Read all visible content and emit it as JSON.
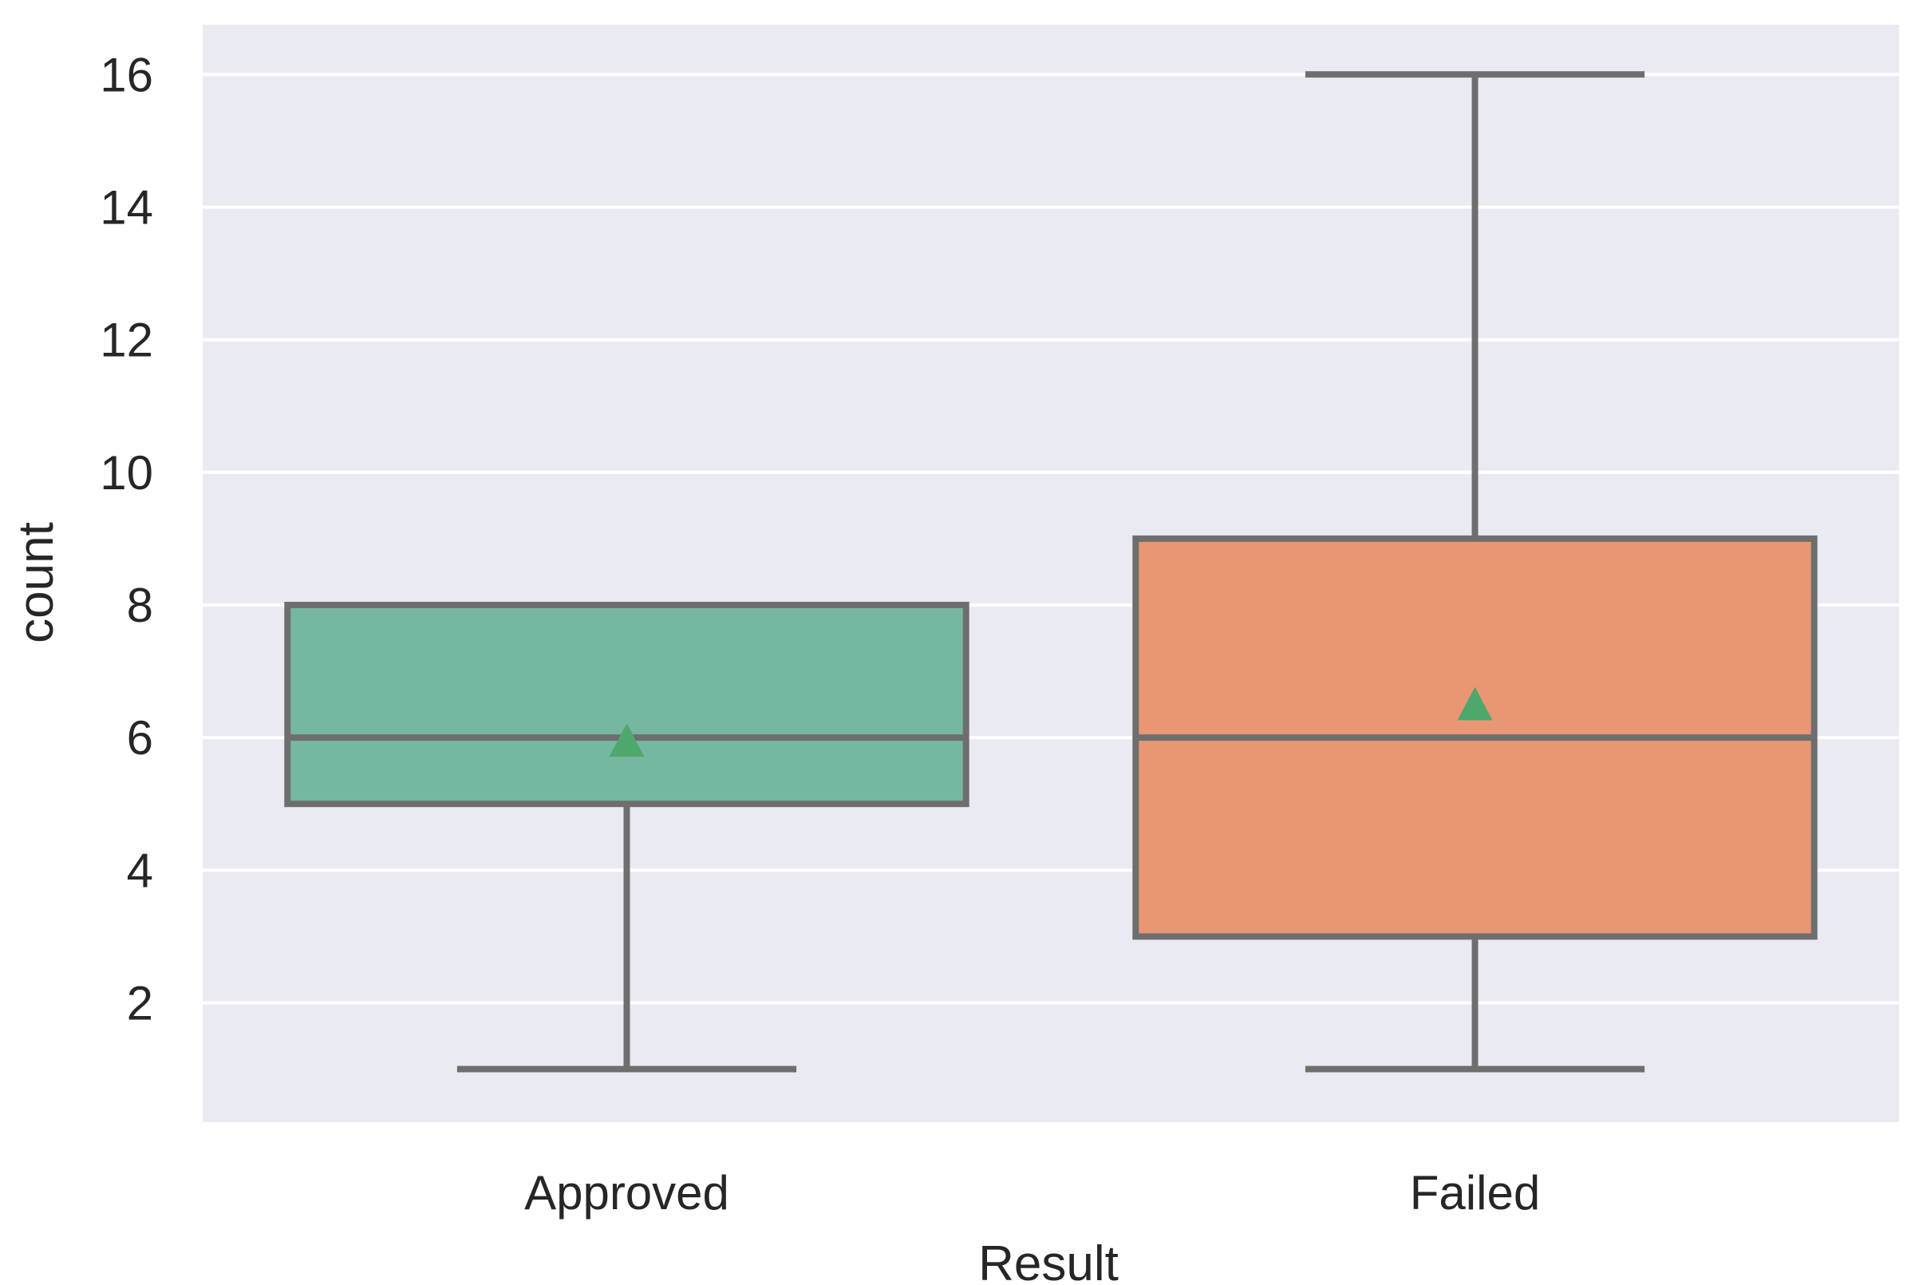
{
  "chart_data": {
    "type": "box",
    "xlabel": "Result",
    "ylabel": "count",
    "categories": [
      "Approved",
      "Failed"
    ],
    "ylim": [
      0.2,
      16.75
    ],
    "yticks": [
      2,
      4,
      6,
      8,
      10,
      12,
      14,
      16
    ],
    "grid": true,
    "boxes": [
      {
        "category": "Approved",
        "whisker_low": 1,
        "q1": 5,
        "median": 6,
        "q3": 8,
        "whisker_high": 8,
        "mean": 5.95,
        "color": "#76b7a1"
      },
      {
        "category": "Failed",
        "whisker_low": 1,
        "q1": 3,
        "median": 6,
        "q3": 9,
        "whisker_high": 16,
        "mean": 6.5,
        "color": "#e99675"
      }
    ],
    "colors": {
      "background": "#eaeaf2",
      "grid": "#ffffff",
      "outline": "#6e6e6e",
      "mean_marker": "#4fa86b"
    }
  }
}
